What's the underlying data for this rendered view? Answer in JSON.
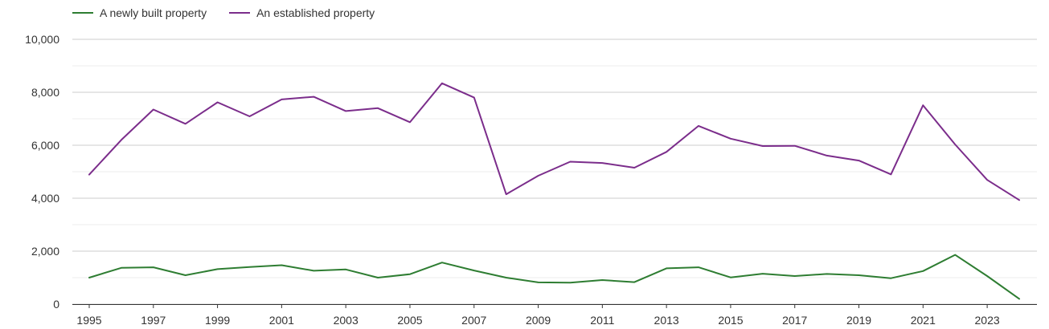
{
  "chart_data": {
    "type": "line",
    "title": "",
    "xlabel": "",
    "ylabel": "",
    "ylim": [
      0,
      10000
    ],
    "xlim": [
      1995,
      2024
    ],
    "yticks": [
      0,
      2000,
      4000,
      6000,
      8000,
      10000
    ],
    "ytick_labels": [
      "0",
      "2,000",
      "4,000",
      "6,000",
      "8,000",
      "10,000"
    ],
    "xticks": [
      1995,
      1997,
      1999,
      2001,
      2003,
      2005,
      2007,
      2009,
      2011,
      2013,
      2015,
      2017,
      2019,
      2021,
      2023
    ],
    "xtick_labels": [
      "1995",
      "1997",
      "1999",
      "2001",
      "2003",
      "2005",
      "2007",
      "2009",
      "2011",
      "2013",
      "2015",
      "2017",
      "2019",
      "2021",
      "2023"
    ],
    "grid": true,
    "legend_position": "top-left",
    "x": [
      1995,
      1996,
      1997,
      1998,
      1999,
      2000,
      2001,
      2002,
      2003,
      2004,
      2005,
      2006,
      2007,
      2008,
      2009,
      2010,
      2011,
      2012,
      2013,
      2014,
      2015,
      2016,
      2017,
      2018,
      2019,
      2020,
      2021,
      2022,
      2023,
      2024
    ],
    "series": [
      {
        "name": "A newly built property",
        "color": "#2e7d32",
        "values": [
          1000,
          1370,
          1390,
          1090,
          1320,
          1400,
          1470,
          1260,
          1310,
          1000,
          1130,
          1570,
          1270,
          1000,
          820,
          810,
          910,
          830,
          1350,
          1390,
          1010,
          1150,
          1060,
          1140,
          1090,
          980,
          1250,
          1860,
          1060,
          200
        ]
      },
      {
        "name": "An established property",
        "color": "#7b2d8b",
        "values": [
          4890,
          6200,
          7350,
          6810,
          7620,
          7090,
          7730,
          7830,
          7290,
          7400,
          6870,
          8340,
          7800,
          4150,
          4850,
          5380,
          5330,
          5150,
          5750,
          6730,
          6250,
          5970,
          5980,
          5610,
          5420,
          4900,
          7510,
          6030,
          4690,
          3930
        ]
      }
    ]
  }
}
